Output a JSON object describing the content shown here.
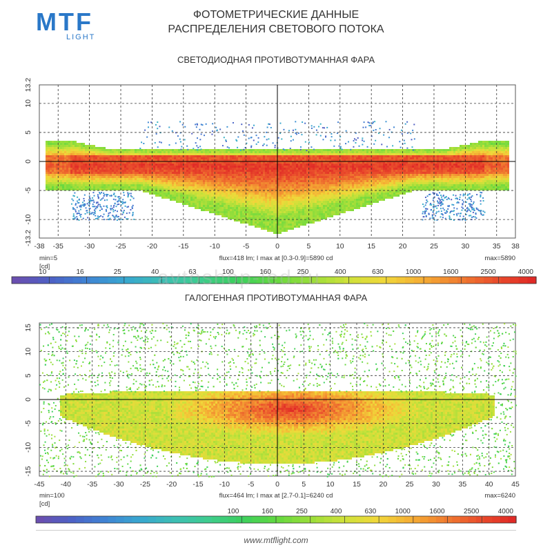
{
  "header": {
    "logo": "MTF",
    "logo_sub": "LIGHT",
    "title_line1": "ФОТОМЕТРИЧЕСКИЕ ДАННЫЕ",
    "title_line2": "РАСПРЕДЕЛЕНИЯ СВЕТОВОГО ПОТОКА"
  },
  "watermark": "avtoshop-led.ru",
  "footer": {
    "url": "www.mtflight.com"
  },
  "colors": {
    "grid": "#333333",
    "axis": "#000000",
    "text": "#333333"
  },
  "chart_data": [
    {
      "type": "heatmap",
      "title": "СВЕТОДИОДНАЯ ПРОТИВОТУМАННАЯ ФАРА",
      "xlim": [
        -38,
        38
      ],
      "ylim": [
        -13.2,
        13.2
      ],
      "xticks": [
        "-38",
        "-35",
        "-30",
        "-25",
        "-20",
        "-15",
        "-10",
        "-5",
        "0",
        "5",
        "10",
        "15",
        "20",
        "25",
        "30",
        "35",
        "38"
      ],
      "xtick_values": [
        -38,
        -35,
        -30,
        -25,
        -20,
        -15,
        -10,
        -5,
        0,
        5,
        10,
        15,
        20,
        25,
        30,
        35,
        38
      ],
      "yticks": [
        "13.2",
        "10",
        "5",
        "0",
        "-5",
        "-10",
        "-13.2"
      ],
      "ytick_values": [
        13.2,
        10,
        5,
        0,
        -5,
        -10,
        -13.2
      ],
      "min_label": "min=5",
      "unit_label": "[cd]",
      "info": "flux=418 lm; I max at [0.3-0.9]=5890 cd",
      "max_label": "max=5890",
      "colorbar_ticks": [
        "10",
        "16",
        "25",
        "40",
        "63",
        "100",
        "160",
        "250",
        "400",
        "630",
        "1000",
        "1600",
        "2500",
        "4000"
      ],
      "colorbar_start": 0,
      "flux_lm": 418,
      "i_max_cd": 5890,
      "i_min_cd": 5
    },
    {
      "type": "heatmap",
      "title": "ГАЛОГЕННАЯ ПРОТИВОТУМАННАЯ ФАРА",
      "xlim": [
        -45,
        45
      ],
      "ylim": [
        -16,
        16
      ],
      "xticks": [
        "-45",
        "-40",
        "-35",
        "-30",
        "-25",
        "-20",
        "-15",
        "-10",
        "-5",
        "0",
        "5",
        "10",
        "15",
        "20",
        "25",
        "30",
        "35",
        "40",
        "45"
      ],
      "xtick_values": [
        -45,
        -40,
        -35,
        -30,
        -25,
        -20,
        -15,
        -10,
        -5,
        0,
        5,
        10,
        15,
        20,
        25,
        30,
        35,
        40,
        45
      ],
      "yticks": [
        "15",
        "10",
        "5",
        "0",
        "-5",
        "-10",
        "-15"
      ],
      "ytick_values": [
        15,
        10,
        5,
        0,
        -5,
        -10,
        -15
      ],
      "min_label": "min=100",
      "unit_label": "[cd]",
      "info": "flux=464 lm; I max at [2.7-0.1]=6240 cd",
      "max_label": "max=6240",
      "colorbar_ticks": [
        "100",
        "160",
        "250",
        "400",
        "630",
        "1000",
        "1600",
        "2500",
        "4000"
      ],
      "colorbar_start": 5,
      "flux_lm": 464,
      "i_max_cd": 6240,
      "i_min_cd": 100
    }
  ]
}
